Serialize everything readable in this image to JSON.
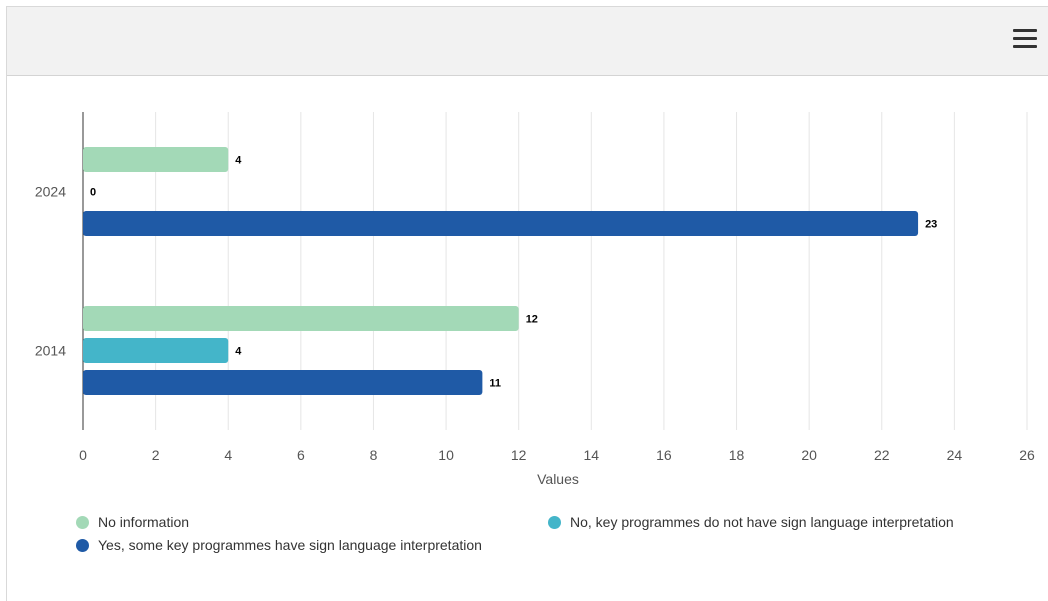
{
  "colors": {
    "no_information": "#a3d9b7",
    "no_sign_language": "#44b5c9",
    "yes_sign_language": "#1f5aa6"
  },
  "toolbar": {
    "menu_icon": "hamburger-menu-icon"
  },
  "chart_data": {
    "type": "bar",
    "orientation": "horizontal",
    "categories": [
      "2024",
      "2014"
    ],
    "series": [
      {
        "name": "No information",
        "values": [
          4,
          12
        ],
        "color": "#a3d9b7"
      },
      {
        "name": "No, key programmes do not have sign language interpretation",
        "values": [
          0,
          4
        ],
        "color": "#44b5c9"
      },
      {
        "name": "Yes, some key programmes have sign language interpretation",
        "values": [
          23,
          11
        ],
        "color": "#1f5aa6"
      }
    ],
    "title": "",
    "xlabel": "Values",
    "ylabel": "",
    "xlim": [
      0,
      26
    ],
    "x_ticks": [
      0,
      2,
      4,
      6,
      8,
      10,
      12,
      14,
      16,
      18,
      20,
      22,
      24,
      26
    ],
    "grid": true,
    "legend_position": "bottom"
  }
}
